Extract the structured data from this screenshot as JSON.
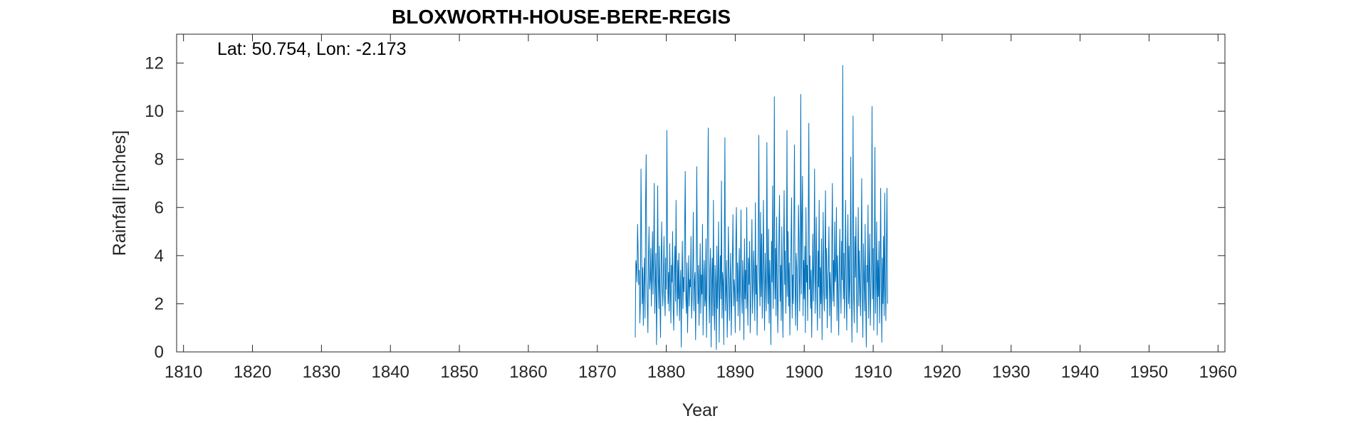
{
  "chart_data": {
    "type": "line",
    "title": "BLOXWORTH-HOUSE-BERE-REGIS",
    "annotation": "Lat: 50.754, Lon: -2.173",
    "xlabel": "Year",
    "ylabel": "Rainfall [inches]",
    "xlim": [
      1809,
      1961
    ],
    "ylim": [
      0,
      13.2
    ],
    "xticks": [
      1810,
      1820,
      1830,
      1840,
      1850,
      1860,
      1870,
      1880,
      1890,
      1900,
      1910,
      1920,
      1930,
      1940,
      1950,
      1960
    ],
    "yticks": [
      0,
      2,
      4,
      6,
      8,
      10,
      12
    ],
    "grid": false,
    "series_color": "#0072BD",
    "series": [
      {
        "x_start": 1875.5,
        "x_step": 0.0833333,
        "values": [
          0.6,
          3.8,
          3.6,
          2.9,
          5.3,
          4.2,
          2.8,
          3.4,
          1.2,
          2.1,
          7.6,
          4.6,
          2.0,
          3.5,
          1.1,
          2.8,
          3.9,
          1.4,
          6.2,
          8.2,
          3.1,
          2.0,
          0.8,
          3.9,
          5.2,
          2.6,
          3.0,
          4.3,
          1.9,
          3.3,
          5.0,
          2.4,
          3.8,
          7.0,
          1.6,
          2.9,
          4.1,
          0.3,
          2.5,
          6.9,
          3.2,
          1.8,
          4.4,
          2.2,
          0.6,
          3.6,
          5.4,
          2.7,
          1.9,
          3.1,
          4.8,
          2.3,
          1.5,
          3.9,
          2.6,
          9.2,
          4.7,
          2.0,
          3.3,
          1.7,
          4.5,
          2.8,
          1.2,
          3.6,
          2.9,
          5.0,
          1.8,
          0.9,
          3.2,
          4.4,
          2.1,
          6.3,
          2.7,
          1.5,
          3.8,
          2.2,
          4.1,
          1.3,
          2.6,
          3.4,
          0.2,
          2.9,
          4.6,
          1.8,
          3.1,
          2.5,
          5.2,
          7.5,
          2.3,
          1.6,
          3.7,
          0.8,
          2.4,
          4.0,
          1.9,
          3.0,
          2.7,
          4.8,
          1.4,
          2.2,
          3.5,
          5.8,
          1.7,
          2.9,
          3.3,
          0.5,
          2.6,
          7.7,
          4.2,
          2.0,
          3.6,
          1.1,
          2.8,
          4.5,
          1.6,
          3.2,
          2.4,
          5.3,
          0.7,
          2.9,
          3.8,
          1.9,
          2.2,
          4.7,
          0.6,
          3.0,
          6.1,
          9.3,
          2.5,
          1.2,
          3.4,
          4.3,
          0.2,
          2.7,
          3.9,
          1.5,
          6.3,
          2.1,
          0.9,
          3.6,
          2.8,
          0.1,
          4.4,
          1.8,
          3.1,
          5.4,
          0.4,
          2.6,
          4.0,
          2.2,
          7.1,
          1.4,
          3.3,
          2.9,
          0.3,
          4.6,
          8.9,
          1.7,
          2.5,
          3.8,
          0.6,
          2.0,
          5.2,
          3.4,
          1.3,
          2.8,
          4.1,
          0.7,
          2.3,
          3.6,
          5.7,
          1.9,
          3.0,
          2.6,
          0.8,
          4.5,
          6.0,
          2.1,
          3.7,
          1.5,
          2.9,
          4.3,
          0.9,
          3.2,
          5.9,
          2.4,
          1.6,
          3.8,
          2.7,
          0.5,
          4.7,
          2.2,
          3.4,
          1.8,
          6.0,
          2.5,
          1.1,
          3.9,
          2.8,
          4.6,
          0.8,
          2.0,
          3.3,
          5.5,
          1.6,
          2.7,
          4.2,
          3.0,
          1.3,
          6.2,
          2.4,
          3.6,
          0.7,
          2.9,
          4.4,
          9.0,
          3.1,
          1.9,
          5.8,
          2.3,
          4.9,
          1.4,
          3.5,
          6.3,
          2.6,
          0.9,
          4.1,
          2.8,
          1.7,
          8.7,
          3.3,
          2.0,
          5.1,
          1.2,
          3.8,
          2.5,
          0.3,
          4.6,
          2.9,
          6.9,
          1.8,
          3.4,
          10.6,
          2.2,
          4.3,
          1.5,
          5.6,
          3.0,
          0.8,
          2.7,
          4.8,
          6.5,
          2.1,
          3.6,
          1.3,
          5.2,
          2.4,
          0.6,
          3.9,
          6.7,
          2.8,
          4.2,
          1.6,
          3.1,
          9.2,
          2.3,
          5.0,
          1.9,
          3.7,
          0.7,
          2.6,
          4.5,
          6.4,
          1.4,
          3.2,
          2.0,
          5.3,
          8.6,
          2.9,
          1.1,
          4.1,
          3.5,
          0.9,
          2.7,
          6.1,
          4.6,
          1.7,
          3.3,
          10.7,
          2.4,
          5.5,
          7.3,
          1.5,
          3.8,
          2.2,
          4.4,
          0.8,
          6.0,
          2.9,
          3.6,
          1.3,
          5.1,
          9.5,
          2.6,
          4.0,
          1.8,
          3.4,
          0.6,
          2.8,
          4.9,
          2.1,
          3.7,
          7.6,
          1.6,
          3.0,
          5.6,
          2.3,
          0.9,
          4.2,
          2.7,
          6.3,
          1.4,
          3.5,
          2.0,
          4.7,
          0.5,
          3.1,
          5.8,
          2.5,
          1.7,
          3.9,
          6.7,
          2.2,
          4.3,
          1.0,
          2.8,
          3.6,
          5.2,
          1.5,
          3.3,
          2.6,
          0.8,
          4.5,
          7.0,
          2.1,
          3.8,
          1.9,
          5.4,
          2.9,
          3.2,
          6.0,
          1.3,
          4.0,
          2.4,
          0.7,
          3.5,
          5.1,
          2.8,
          1.6,
          4.6,
          3.0,
          11.9,
          2.2,
          4.1,
          1.4,
          3.6,
          6.3,
          2.5,
          0.9,
          3.9,
          5.7,
          2.0,
          4.4,
          1.8,
          3.2,
          8.1,
          2.7,
          0.4,
          3.7,
          9.8,
          2.3,
          1.2,
          4.8,
          3.1,
          5.6,
          2.6,
          0.8,
          3.4,
          6.0,
          1.9,
          4.2,
          2.8,
          1.5,
          3.8,
          7.2,
          2.4,
          0.6,
          4.5,
          3.0,
          1.7,
          5.3,
          2.1,
          0.2,
          3.6,
          2.9,
          6.1,
          1.4,
          3.3,
          4.9,
          1.1,
          2.5,
          3.7,
          10.2,
          2.2,
          4.3,
          0.9,
          3.5,
          8.5,
          1.6,
          2.9,
          5.4,
          0.7,
          3.8,
          2.3,
          4.6,
          1.2,
          3.1,
          6.8,
          2.6,
          0.4,
          3.9,
          2.0,
          4.8,
          1.5,
          6.6,
          2.7,
          1.3,
          4.4,
          6.8,
          2.0
        ]
      }
    ]
  }
}
